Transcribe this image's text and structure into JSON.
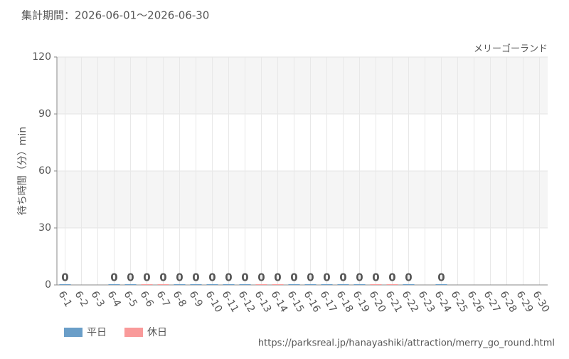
{
  "chart_data": {
    "type": "bar",
    "subtitle": "集計期間：2026-06-01～2026-06-30",
    "title": "メリーゴーランド",
    "ylabel": "待ち時間（分）min",
    "source": "https://parksreal.jp/hanayashiki/attraction/merry_go_round.html",
    "categories": [
      "6-1",
      "6-2",
      "6-3",
      "6-4",
      "6-5",
      "6-6",
      "6-7",
      "6-8",
      "6-9",
      "6-10",
      "6-11",
      "6-12",
      "6-13",
      "6-14",
      "6-15",
      "6-16",
      "6-17",
      "6-18",
      "6-19",
      "6-20",
      "6-21",
      "6-22",
      "6-23",
      "6-24",
      "6-25",
      "6-26",
      "6-27",
      "6-28",
      "6-29",
      "6-30"
    ],
    "category_label_colors": [
      "#555",
      "#555",
      "#555",
      "#555",
      "#555",
      "#f08a8a",
      "#f08a8a",
      "#555",
      "#555",
      "#555",
      "#555",
      "#555",
      "#f08a8a",
      "#f08a8a",
      "#555",
      "#555",
      "#555",
      "#555",
      "#555",
      "#f08a8a",
      "#f08a8a",
      "#555",
      "#555",
      "#555",
      "#555",
      "#555",
      "#f08a8a",
      "#f08a8a",
      "#555",
      "#555"
    ],
    "series": [
      {
        "name": "平日",
        "color": "#6a9ec8",
        "values": [
          0,
          null,
          null,
          0,
          0,
          null,
          null,
          0,
          0,
          0,
          0,
          0,
          null,
          null,
          0,
          0,
          0,
          0,
          0,
          null,
          null,
          0,
          null,
          0,
          null,
          null,
          null,
          null,
          null,
          null
        ]
      },
      {
        "name": "休日",
        "color": "#f99a9a",
        "values": [
          null,
          null,
          null,
          null,
          null,
          0,
          0,
          null,
          null,
          null,
          null,
          null,
          0,
          0,
          null,
          null,
          null,
          null,
          null,
          0,
          0,
          null,
          null,
          null,
          null,
          null,
          null,
          null,
          null,
          null
        ]
      }
    ],
    "ylim": [
      0,
      120
    ],
    "yticks": [
      0,
      30,
      60,
      90,
      120
    ],
    "grid": true
  }
}
